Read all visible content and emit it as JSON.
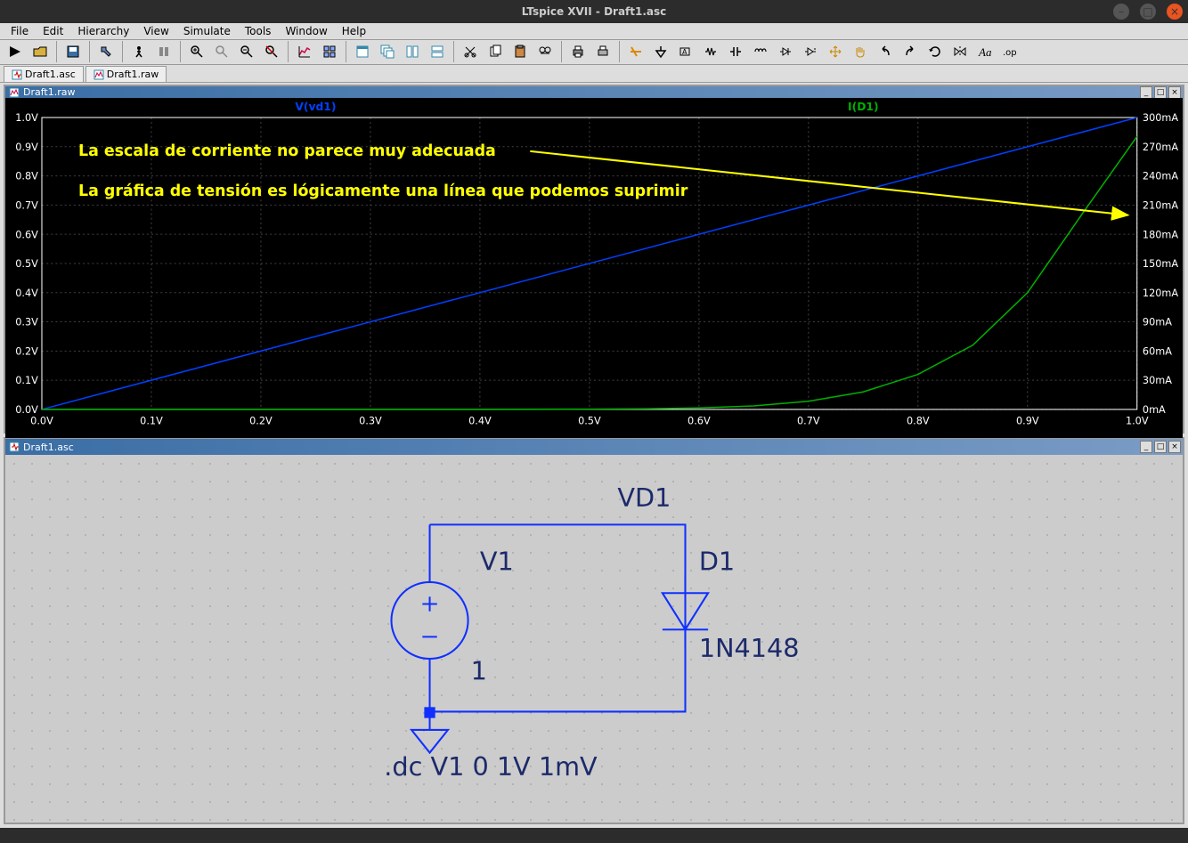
{
  "window": {
    "title": "LTspice XVII - Draft1.asc"
  },
  "menu": {
    "items": [
      "File",
      "Edit",
      "Hierarchy",
      "View",
      "Simulate",
      "Tools",
      "Window",
      "Help"
    ]
  },
  "tabs": {
    "items": [
      {
        "label": "Draft1.asc",
        "icon": "schematic-icon"
      },
      {
        "label": "Draft1.raw",
        "icon": "waveform-icon"
      }
    ]
  },
  "waveform": {
    "pane_title": "Draft1.raw",
    "trace_v_label": "V(vd1)",
    "trace_i_label": "I(D1)",
    "annotations": {
      "line1": "La  escala de corriente no parece muy adecuada",
      "line2": "La gráfica de tensión es lógicamente una línea que podemos suprimir",
      "color": "#ffff00"
    },
    "x_axis": {
      "min": 0.0,
      "max": 1.0,
      "step": 0.1,
      "unit": "V",
      "ticks": [
        "0.0V",
        "0.1V",
        "0.2V",
        "0.3V",
        "0.4V",
        "0.5V",
        "0.6V",
        "0.7V",
        "0.8V",
        "0.9V",
        "1.0V"
      ]
    },
    "y_left": {
      "min": 0.0,
      "max": 1.0,
      "step": 0.1,
      "unit": "V",
      "ticks": [
        "0.0V",
        "0.1V",
        "0.2V",
        "0.3V",
        "0.4V",
        "0.5V",
        "0.6V",
        "0.7V",
        "0.8V",
        "0.9V",
        "1.0V"
      ],
      "color": "#ffffff"
    },
    "y_right": {
      "min": 0,
      "max": 300,
      "step": 30,
      "unit": "mA",
      "ticks": [
        "0mA",
        "30mA",
        "60mA",
        "90mA",
        "120mA",
        "150mA",
        "180mA",
        "210mA",
        "240mA",
        "270mA",
        "300mA"
      ],
      "color": "#ffffff"
    },
    "grid_color": "#404040",
    "axis_color": "#ffffff",
    "bg_color": "#000000",
    "trace_v": {
      "color": "#0040ff",
      "type": "line",
      "points": [
        [
          0,
          0
        ],
        [
          1,
          1
        ]
      ]
    },
    "trace_i": {
      "color": "#00b000",
      "type": "line",
      "points": [
        [
          0.0,
          0
        ],
        [
          0.4,
          0
        ],
        [
          0.5,
          0.001
        ],
        [
          0.55,
          0.002
        ],
        [
          0.6,
          0.005
        ],
        [
          0.65,
          0.012
        ],
        [
          0.7,
          0.028
        ],
        [
          0.75,
          0.06
        ],
        [
          0.8,
          0.12
        ],
        [
          0.85,
          0.22
        ],
        [
          0.9,
          0.4
        ],
        [
          0.95,
          0.67
        ],
        [
          1.0,
          0.935
        ]
      ]
    }
  },
  "schematic": {
    "pane_title": "Draft1.asc",
    "net_label": "VD1",
    "v1_name": "V1",
    "v1_value": "1",
    "d1_name": "D1",
    "d1_model": "1N4148",
    "spice_directive": ".dc V1 0 1V 1mV",
    "wire_color": "#1030ff",
    "text_color": "#1c2a6a",
    "component_font_size": 26
  },
  "status": {
    "text": ""
  }
}
